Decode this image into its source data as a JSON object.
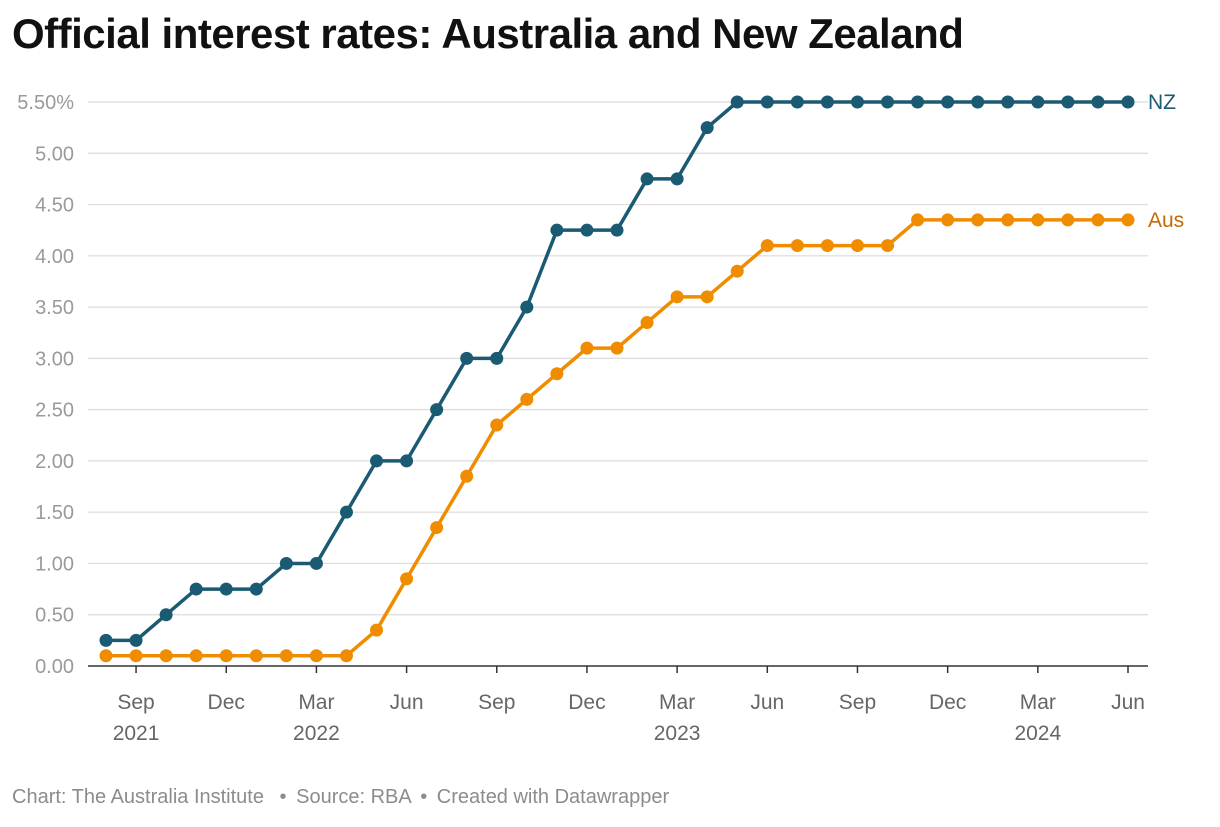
{
  "title": "Official interest rates: Australia and New Zealand",
  "footer": {
    "credit": "Chart: The Australia Institute",
    "source": "Source: RBA",
    "tool": "Created with Datawrapper",
    "separator": "•"
  },
  "chart_data": {
    "type": "line",
    "x": [
      "2021-08",
      "2021-09",
      "2021-10",
      "2021-11",
      "2021-12",
      "2022-01",
      "2022-02",
      "2022-03",
      "2022-04",
      "2022-05",
      "2022-06",
      "2022-07",
      "2022-08",
      "2022-09",
      "2022-10",
      "2022-11",
      "2022-12",
      "2023-01",
      "2023-02",
      "2023-03",
      "2023-04",
      "2023-05",
      "2023-06",
      "2023-07",
      "2023-08",
      "2023-09",
      "2023-10",
      "2023-11",
      "2023-12",
      "2024-01",
      "2024-02",
      "2024-03",
      "2024-04",
      "2024-05",
      "2024-06"
    ],
    "series": [
      {
        "name": "NZ",
        "color": "#1b5a73",
        "values": [
          0.25,
          0.25,
          0.5,
          0.75,
          0.75,
          0.75,
          1.0,
          1.0,
          1.5,
          2.0,
          2.0,
          2.5,
          3.0,
          3.0,
          3.5,
          4.25,
          4.25,
          4.25,
          4.75,
          4.75,
          5.25,
          5.5,
          5.5,
          5.5,
          5.5,
          5.5,
          5.5,
          5.5,
          5.5,
          5.5,
          5.5,
          5.5,
          5.5,
          5.5,
          5.5
        ]
      },
      {
        "name": "Aus",
        "color": "#f08c00",
        "label_color": "#c46b00",
        "values": [
          0.1,
          0.1,
          0.1,
          0.1,
          0.1,
          0.1,
          0.1,
          0.1,
          0.1,
          0.35,
          0.85,
          1.35,
          1.85,
          2.35,
          2.6,
          2.85,
          3.1,
          3.1,
          3.35,
          3.6,
          3.6,
          3.85,
          4.1,
          4.1,
          4.1,
          4.1,
          4.1,
          4.35,
          4.35,
          4.35,
          4.35,
          4.35,
          4.35,
          4.35,
          4.35
        ]
      }
    ],
    "ylim": [
      0,
      5.5
    ],
    "yticks": [
      {
        "value": 0,
        "label": "0.00"
      },
      {
        "value": 0.5,
        "label": "0.50"
      },
      {
        "value": 1.0,
        "label": "1.00"
      },
      {
        "value": 1.5,
        "label": "1.50"
      },
      {
        "value": 2.0,
        "label": "2.00"
      },
      {
        "value": 2.5,
        "label": "2.50"
      },
      {
        "value": 3.0,
        "label": "3.00"
      },
      {
        "value": 3.5,
        "label": "3.50"
      },
      {
        "value": 4.0,
        "label": "4.00"
      },
      {
        "value": 4.5,
        "label": "4.50"
      },
      {
        "value": 5.0,
        "label": "5.00"
      },
      {
        "value": 5.5,
        "label": "5.50%"
      }
    ],
    "xticks": [
      {
        "x": "2021-09",
        "label": "Sep",
        "year": "2021"
      },
      {
        "x": "2021-12",
        "label": "Dec",
        "year": ""
      },
      {
        "x": "2022-03",
        "label": "Mar",
        "year": "2022"
      },
      {
        "x": "2022-06",
        "label": "Jun",
        "year": ""
      },
      {
        "x": "2022-09",
        "label": "Sep",
        "year": ""
      },
      {
        "x": "2022-12",
        "label": "Dec",
        "year": ""
      },
      {
        "x": "2023-03",
        "label": "Mar",
        "year": "2023"
      },
      {
        "x": "2023-06",
        "label": "Jun",
        "year": ""
      },
      {
        "x": "2023-09",
        "label": "Sep",
        "year": ""
      },
      {
        "x": "2023-12",
        "label": "Dec",
        "year": ""
      },
      {
        "x": "2024-03",
        "label": "Mar",
        "year": "2024"
      },
      {
        "x": "2024-06",
        "label": "Jun",
        "year": ""
      }
    ],
    "grid": true,
    "legend": "direct labels at line ends"
  }
}
